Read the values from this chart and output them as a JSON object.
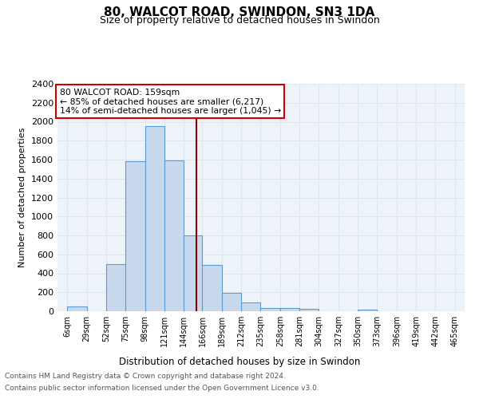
{
  "title1": "80, WALCOT ROAD, SWINDON, SN3 1DA",
  "title2": "Size of property relative to detached houses in Swindon",
  "xlabel": "Distribution of detached houses by size in Swindon",
  "ylabel": "Number of detached properties",
  "footnote1": "Contains HM Land Registry data © Crown copyright and database right 2024.",
  "footnote2": "Contains public sector information licensed under the Open Government Licence v3.0.",
  "annotation_line1": "80 WALCOT ROAD: 159sqm",
  "annotation_line2": "← 85% of detached houses are smaller (6,217)",
  "annotation_line3": "14% of semi-detached houses are larger (1,045) →",
  "bar_edges": [
    6,
    29,
    52,
    75,
    98,
    121,
    144,
    166,
    189,
    212,
    235,
    258,
    281,
    304,
    327,
    350,
    373,
    396,
    419,
    442,
    465
  ],
  "bar_heights": [
    50,
    0,
    500,
    1580,
    1950,
    1590,
    800,
    490,
    195,
    90,
    35,
    35,
    25,
    0,
    0,
    20,
    0,
    0,
    0,
    0
  ],
  "tick_labels": [
    "6sqm",
    "29sqm",
    "52sqm",
    "75sqm",
    "98sqm",
    "121sqm",
    "144sqm",
    "166sqm",
    "189sqm",
    "212sqm",
    "235sqm",
    "258sqm",
    "281sqm",
    "304sqm",
    "327sqm",
    "350sqm",
    "373sqm",
    "396sqm",
    "419sqm",
    "442sqm",
    "465sqm"
  ],
  "bar_color": "#c8d9ed",
  "bar_edge_color": "#5b9bd5",
  "vline_x": 159,
  "vline_color": "#8b0000",
  "annotation_box_color": "#ffffff",
  "annotation_box_edge": "#cc0000",
  "ylim": [
    0,
    2400
  ],
  "yticks": [
    0,
    200,
    400,
    600,
    800,
    1000,
    1200,
    1400,
    1600,
    1800,
    2000,
    2200,
    2400
  ],
  "grid_color": "#dce6f1",
  "bg_color": "#eef3f9"
}
